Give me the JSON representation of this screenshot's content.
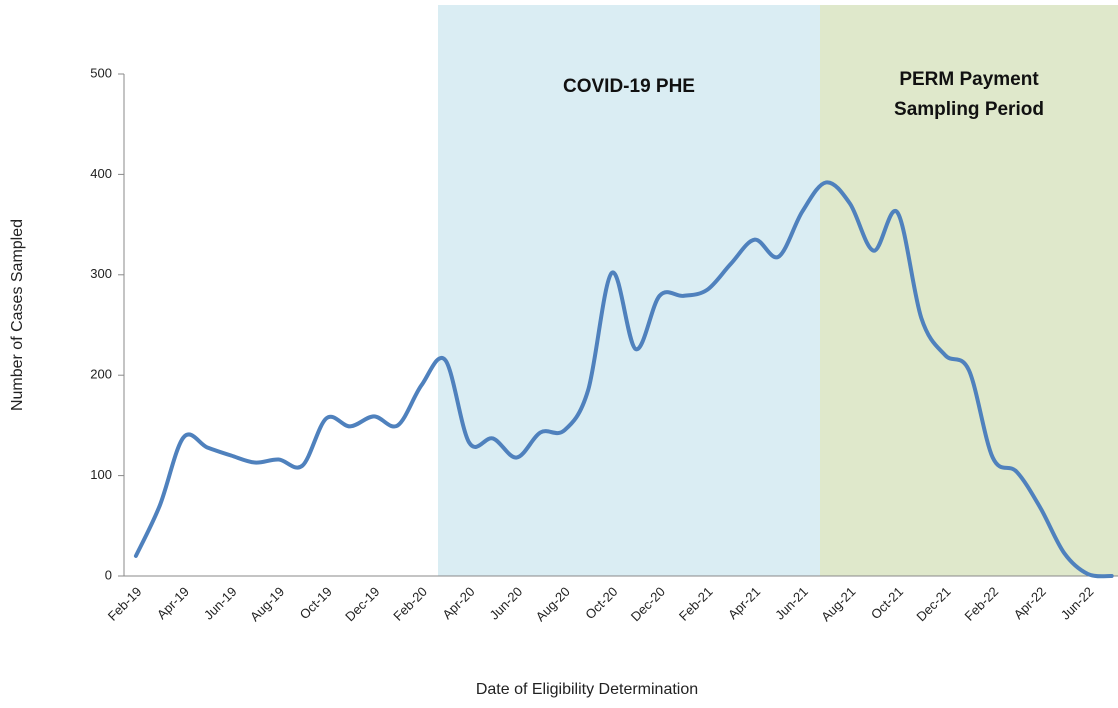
{
  "chart_data": {
    "type": "line",
    "x_label": "Date of Eligibility Determination",
    "y_label": "Number of Cases Sampled",
    "annotations": [
      "COVID-19 PHE",
      "PERM Payment",
      "Sampling Period"
    ],
    "categories": [
      "Feb-19",
      null,
      "Apr-19",
      null,
      "Jun-19",
      null,
      "Aug-19",
      null,
      "Oct-19",
      null,
      "Dec-19",
      null,
      "Feb-20",
      null,
      "Apr-20",
      null,
      "Jun-20",
      null,
      "Aug-20",
      null,
      "Oct-20",
      null,
      "Dec-20",
      null,
      "Feb-21",
      null,
      "Apr-21",
      null,
      "Jun-21",
      null,
      "Aug-21",
      null,
      "Oct-21",
      null,
      "Dec-21",
      null,
      "Feb-22",
      null,
      "Apr-22",
      null,
      "Jun-22",
      null
    ],
    "series": [
      {
        "name": "Number of Cases Sampled",
        "color": "#4f81bd",
        "values": [
          20,
          70,
          138,
          128,
          120,
          113,
          116,
          110,
          157,
          149,
          159,
          150,
          190,
          215,
          133,
          137,
          118,
          143,
          145,
          185,
          302,
          226,
          279,
          279,
          285,
          311,
          335,
          318,
          363,
          392,
          371,
          324,
          362,
          257,
          220,
          205,
          118,
          104,
          68,
          23,
          2,
          0
        ]
      }
    ],
    "ylim": [
      0,
      500
    ],
    "yticks": [
      0,
      100,
      200,
      300,
      400,
      500
    ],
    "grid": false
  }
}
